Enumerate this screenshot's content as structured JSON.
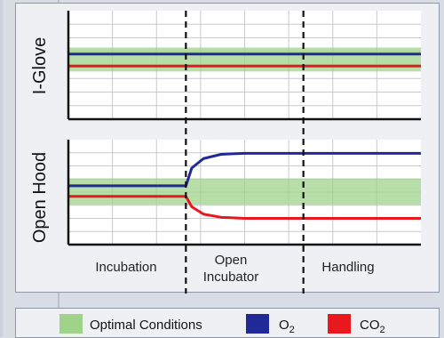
{
  "chart_data": {
    "type": "line",
    "phases": [
      {
        "label_lines": [
          "Incubation"
        ]
      },
      {
        "label_lines": [
          "Open",
          "Incubator"
        ]
      },
      {
        "label_lines": [
          "Handling"
        ]
      }
    ],
    "x_unit_note": "phase boundaries at 1.0 and 2.0 on a 0-3 phase axis",
    "xlim": [
      0,
      3
    ],
    "ylim": [
      0,
      10
    ],
    "grid": true,
    "colors": {
      "optimal": "#9fd38a",
      "o2": "#1f2a96",
      "co2": "#e8181d"
    },
    "panels": [
      {
        "name": "I-Glove",
        "ylabel": "I-Glove",
        "optimal_band": [
          4.4,
          6.6
        ],
        "series": [
          {
            "name": "O2",
            "points": [
              [
                0,
                6.0
              ],
              [
                3,
                6.0
              ]
            ]
          },
          {
            "name": "CO2",
            "points": [
              [
                0,
                4.9
              ],
              [
                3,
                4.9
              ]
            ]
          }
        ]
      },
      {
        "name": "Open Hood",
        "ylabel": "Open Hood",
        "optimal_band": [
          3.8,
          6.3
        ],
        "series": [
          {
            "name": "O2",
            "points": [
              [
                0,
                5.6
              ],
              [
                1.0,
                5.6
              ],
              [
                1.05,
                7.3
              ],
              [
                1.15,
                8.2
              ],
              [
                1.3,
                8.6
              ],
              [
                1.5,
                8.7
              ],
              [
                3,
                8.7
              ]
            ]
          },
          {
            "name": "CO2",
            "points": [
              [
                0,
                4.6
              ],
              [
                1.0,
                4.6
              ],
              [
                1.05,
                3.6
              ],
              [
                1.15,
                2.9
              ],
              [
                1.3,
                2.6
              ],
              [
                1.5,
                2.5
              ],
              [
                3,
                2.5
              ]
            ]
          }
        ]
      }
    ],
    "legend": {
      "placement": "bottom",
      "items": [
        {
          "label": "Optimal Conditions",
          "color_key": "optimal"
        },
        {
          "label": "O",
          "sub": "2",
          "color_key": "o2"
        },
        {
          "label": "CO",
          "sub": "2",
          "color_key": "co2"
        }
      ]
    }
  }
}
